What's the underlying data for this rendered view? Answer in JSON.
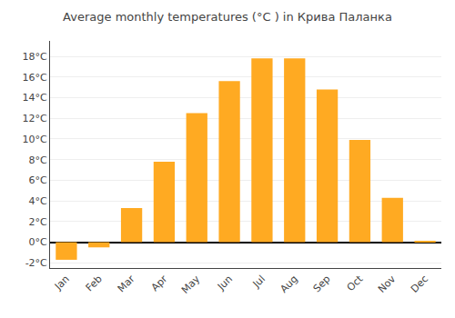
{
  "chart_data": {
    "type": "bar",
    "title": "Average monthly temperatures (°C ) in Крива Паланка",
    "categories": [
      "Jan",
      "Feb",
      "Mar",
      "Apr",
      "May",
      "Jun",
      "Jul",
      "Aug",
      "Sep",
      "Oct",
      "Nov",
      "Dec"
    ],
    "values": [
      -1.7,
      -0.5,
      3.3,
      7.8,
      12.5,
      15.6,
      17.8,
      17.8,
      14.8,
      9.9,
      4.3,
      0.1
    ],
    "color": "#FFAA22",
    "ylim": [
      -2.5,
      19.5
    ],
    "yticks": [
      {
        "value": -2,
        "label": "-2°C"
      },
      {
        "value": 0,
        "label": "0°C"
      },
      {
        "value": 2,
        "label": "2°C"
      },
      {
        "value": 4,
        "label": "4°C"
      },
      {
        "value": 6,
        "label": "6°C"
      },
      {
        "value": 8,
        "label": "8°C"
      },
      {
        "value": 10,
        "label": "10°C"
      },
      {
        "value": 12,
        "label": "12°C"
      },
      {
        "value": 14,
        "label": "14°C"
      },
      {
        "value": 16,
        "label": "16°C"
      },
      {
        "value": 18,
        "label": "18°C"
      }
    ],
    "grid": true
  }
}
